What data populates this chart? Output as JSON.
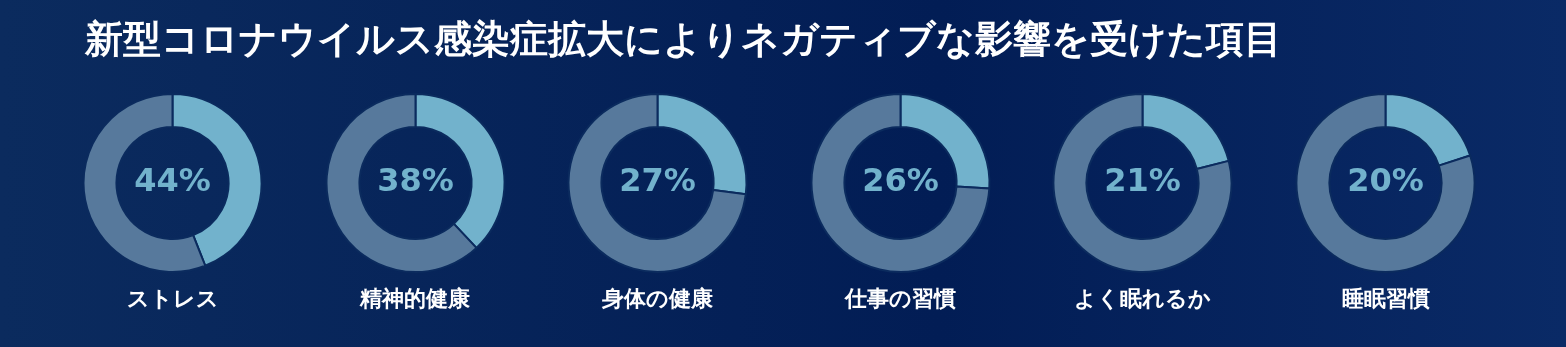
{
  "chart_data": [
    {
      "type": "donut",
      "title": "新型コロナウイルス感染症拡大によりネガティブな影響を受けた項目",
      "xlabel": "ストレス",
      "categories": [
        null,
        null
      ],
      "values": [
        44,
        56
      ],
      "colors": [
        "#72b2cc",
        "#57799c"
      ],
      "value_labels": [
        "44%",
        null
      ]
    },
    {
      "type": "donut",
      "xlabel": "精神的健康",
      "categories": [
        null,
        null
      ],
      "values": [
        38,
        62
      ],
      "colors": [
        "#72b2cc",
        "#57799c"
      ],
      "value_labels": [
        "38%",
        null
      ]
    },
    {
      "type": "donut",
      "xlabel": "身体の健康",
      "categories": [
        null,
        null
      ],
      "values": [
        27,
        73
      ],
      "colors": [
        "#72b2cc",
        "#57799c"
      ],
      "value_labels": [
        "27%",
        null
      ]
    },
    {
      "type": "donut",
      "xlabel": "仕事の習慣",
      "categories": [
        null,
        null
      ],
      "values": [
        26,
        74
      ],
      "colors": [
        "#72b2cc",
        "#57799c"
      ],
      "value_labels": [
        "26%",
        null
      ]
    },
    {
      "type": "donut",
      "xlabel": "よく眠れるか",
      "categories": [
        null,
        null
      ],
      "values": [
        21,
        79
      ],
      "colors": [
        "#72b2cc",
        "#57799c"
      ],
      "value_labels": [
        "21%",
        null
      ]
    },
    {
      "type": "donut",
      "xlabel": "睡眠習慣",
      "categories": [
        null,
        null
      ],
      "values": [
        20,
        80
      ],
      "colors": [
        "#72b2cc",
        "#57799c"
      ],
      "value_labels": [
        "20%",
        null
      ]
    }
  ]
}
